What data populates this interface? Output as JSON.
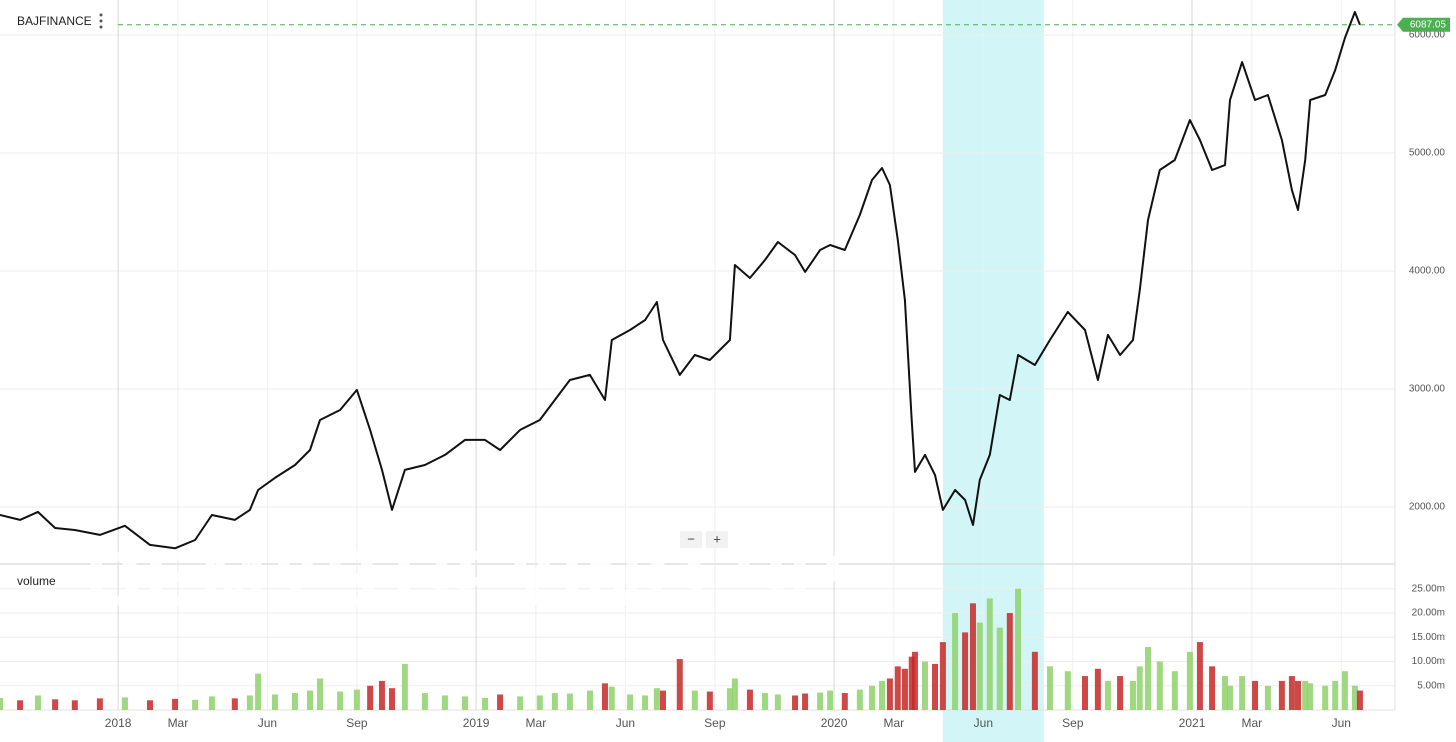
{
  "chart_data": [
    {
      "type": "line",
      "x": [
        2017.67,
        2017.726,
        2017.776,
        2017.824,
        2017.879,
        2017.949,
        2018.019,
        2018.089,
        2018.159,
        2018.215,
        2018.262,
        2018.326,
        2018.368,
        2018.391,
        2018.438,
        2018.494,
        2018.536,
        2018.564,
        2018.62,
        2018.667,
        2018.704,
        2018.737,
        2018.765,
        2018.801,
        2018.857,
        2018.913,
        2018.969,
        2019.025,
        2019.067,
        2019.123,
        2019.178,
        2019.22,
        2019.262,
        2019.318,
        2019.36,
        2019.379,
        2019.43,
        2019.472,
        2019.505,
        2019.522,
        2019.569,
        2019.611,
        2019.653,
        2019.709,
        2019.723,
        2019.765,
        2019.807,
        2019.843,
        2019.891,
        2019.919,
        2019.961,
        2019.989,
        2020.03,
        2020.072,
        2020.106,
        2020.134,
        2020.156,
        2020.178,
        2020.198,
        2020.217,
        2020.226,
        2020.254,
        2020.282,
        2020.304,
        2020.338,
        2020.366,
        2020.388,
        2020.407,
        2020.435,
        2020.463,
        2020.491,
        2020.514,
        2020.561,
        2020.603,
        2020.653,
        2020.701,
        2020.737,
        2020.765,
        2020.799,
        2020.835,
        2020.854,
        2020.877,
        2020.91,
        2020.952,
        2020.994,
        2021.022,
        2021.056,
        2021.092,
        2021.106,
        2021.14,
        2021.176,
        2021.212,
        2021.251,
        2021.279,
        2021.296,
        2021.316,
        2021.33,
        2021.372,
        2021.4,
        2021.427,
        2021.455,
        2021.469
      ],
      "series": [
        {
          "name": "BAJFINANCE",
          "color": "#111111",
          "values": [
            1932,
            1890,
            1958,
            1822,
            1805,
            1763,
            1840,
            1678,
            1650,
            1720,
            1932,
            1890,
            1975,
            2144,
            2246,
            2356,
            2483,
            2737,
            2822,
            2992,
            2653,
            2314,
            1975,
            2314,
            2356,
            2441,
            2568,
            2568,
            2483,
            2653,
            2737,
            2907,
            3076,
            3119,
            2907,
            3415,
            3500,
            3585,
            3737,
            3415,
            3119,
            3288,
            3246,
            3415,
            4051,
            3941,
            4093,
            4246,
            4136,
            3992,
            4178,
            4220,
            4178,
            4475,
            4771,
            4873,
            4729,
            4263,
            3754,
            2737,
            2297,
            2441,
            2271,
            1975,
            2144,
            2059,
            1847,
            2229,
            2441,
            2949,
            2907,
            3288,
            3203,
            3415,
            3653,
            3500,
            3076,
            3458,
            3288,
            3415,
            3839,
            4432,
            4856,
            4941,
            5280,
            5110,
            4856,
            4898,
            5449,
            5771,
            5449,
            5492,
            5110,
            4686,
            4517,
            4941,
            5449,
            5492,
            5703,
            5975,
            6195,
            6087.05
          ]
        }
      ],
      "last_value_color": "#4caf50",
      "xlim": [
        2017.67,
        2021.567
      ],
      "xticks": [
        {
          "value": 2018,
          "label": "2018"
        },
        {
          "value": 2018.167,
          "label": "Mar"
        },
        {
          "value": 2018.417,
          "label": "Jun"
        },
        {
          "value": 2018.667,
          "label": "Sep"
        },
        {
          "value": 2019,
          "label": "2019"
        },
        {
          "value": 2019.167,
          "label": "Mar"
        },
        {
          "value": 2019.417,
          "label": "Jun"
        },
        {
          "value": 2019.667,
          "label": "Sep"
        },
        {
          "value": 2020,
          "label": "2020"
        },
        {
          "value": 2020.167,
          "label": "Mar"
        },
        {
          "value": 2020.417,
          "label": "Jun"
        },
        {
          "value": 2020.667,
          "label": "Sep"
        },
        {
          "value": 2021,
          "label": "2021"
        },
        {
          "value": 2021.167,
          "label": "Mar"
        },
        {
          "value": 2021.417,
          "label": "Jun"
        }
      ],
      "ylim": [
        1525,
        6297
      ],
      "yticks": [
        {
          "value": 2000,
          "label": "2000.00"
        },
        {
          "value": 3000,
          "label": "3000.00"
        },
        {
          "value": 4000,
          "label": "4000.00"
        },
        {
          "value": 5000,
          "label": "5000.00"
        },
        {
          "value": 6000,
          "label": "6000.00"
        }
      ],
      "grid": true,
      "highlight": {
        "x": [
          2020.304,
          2020.586
        ],
        "color": "#d2f5f7"
      }
    },
    {
      "type": "bar",
      "series": [
        {
          "name": "volume",
          "up_color": "#8fd16b",
          "down_color": "#c62828",
          "values": [
            2.5,
            2,
            3,
            2.2,
            2,
            2.4,
            2.6,
            2,
            2.3,
            2.1,
            2.8,
            2.4,
            3,
            7.5,
            3.2,
            3.5,
            4,
            6.5,
            3.8,
            4.2,
            5,
            6,
            4.5,
            9.5,
            3.5,
            3,
            2.8,
            2.5,
            3.2,
            2.8,
            3,
            3.5,
            3.4,
            4,
            5.5,
            4.8,
            3.2,
            3,
            4.5,
            4,
            10.5,
            4,
            3.8,
            4.5,
            6.5,
            4.2,
            3.5,
            3.2,
            3,
            3.4,
            3.6,
            4,
            3.5,
            4.2,
            5,
            6,
            6.5,
            9,
            8.5,
            11,
            12,
            10,
            9.5,
            14,
            20,
            16,
            22,
            18,
            23,
            17,
            20,
            25,
            12,
            9,
            8,
            7,
            8.5,
            6,
            7,
            6,
            9,
            13,
            10,
            8,
            12,
            14,
            9,
            7,
            5,
            7,
            6,
            5,
            6,
            7,
            6,
            6,
            5.5,
            5,
            6,
            8,
            5,
            4
          ]
        }
      ],
      "ylim": [
        0,
        29.9
      ],
      "yticks": [
        {
          "value": 5,
          "label": "5.00m"
        },
        {
          "value": 10,
          "label": "10.00m"
        },
        {
          "value": 15,
          "label": "15.00m"
        },
        {
          "value": 20,
          "label": "20.00m"
        },
        {
          "value": 25,
          "label": "25.00m"
        }
      ],
      "grid": true
    }
  ],
  "watermark": "DEMYSTIFYING SP",
  "zoom_controls": [
    "−",
    "+"
  ]
}
